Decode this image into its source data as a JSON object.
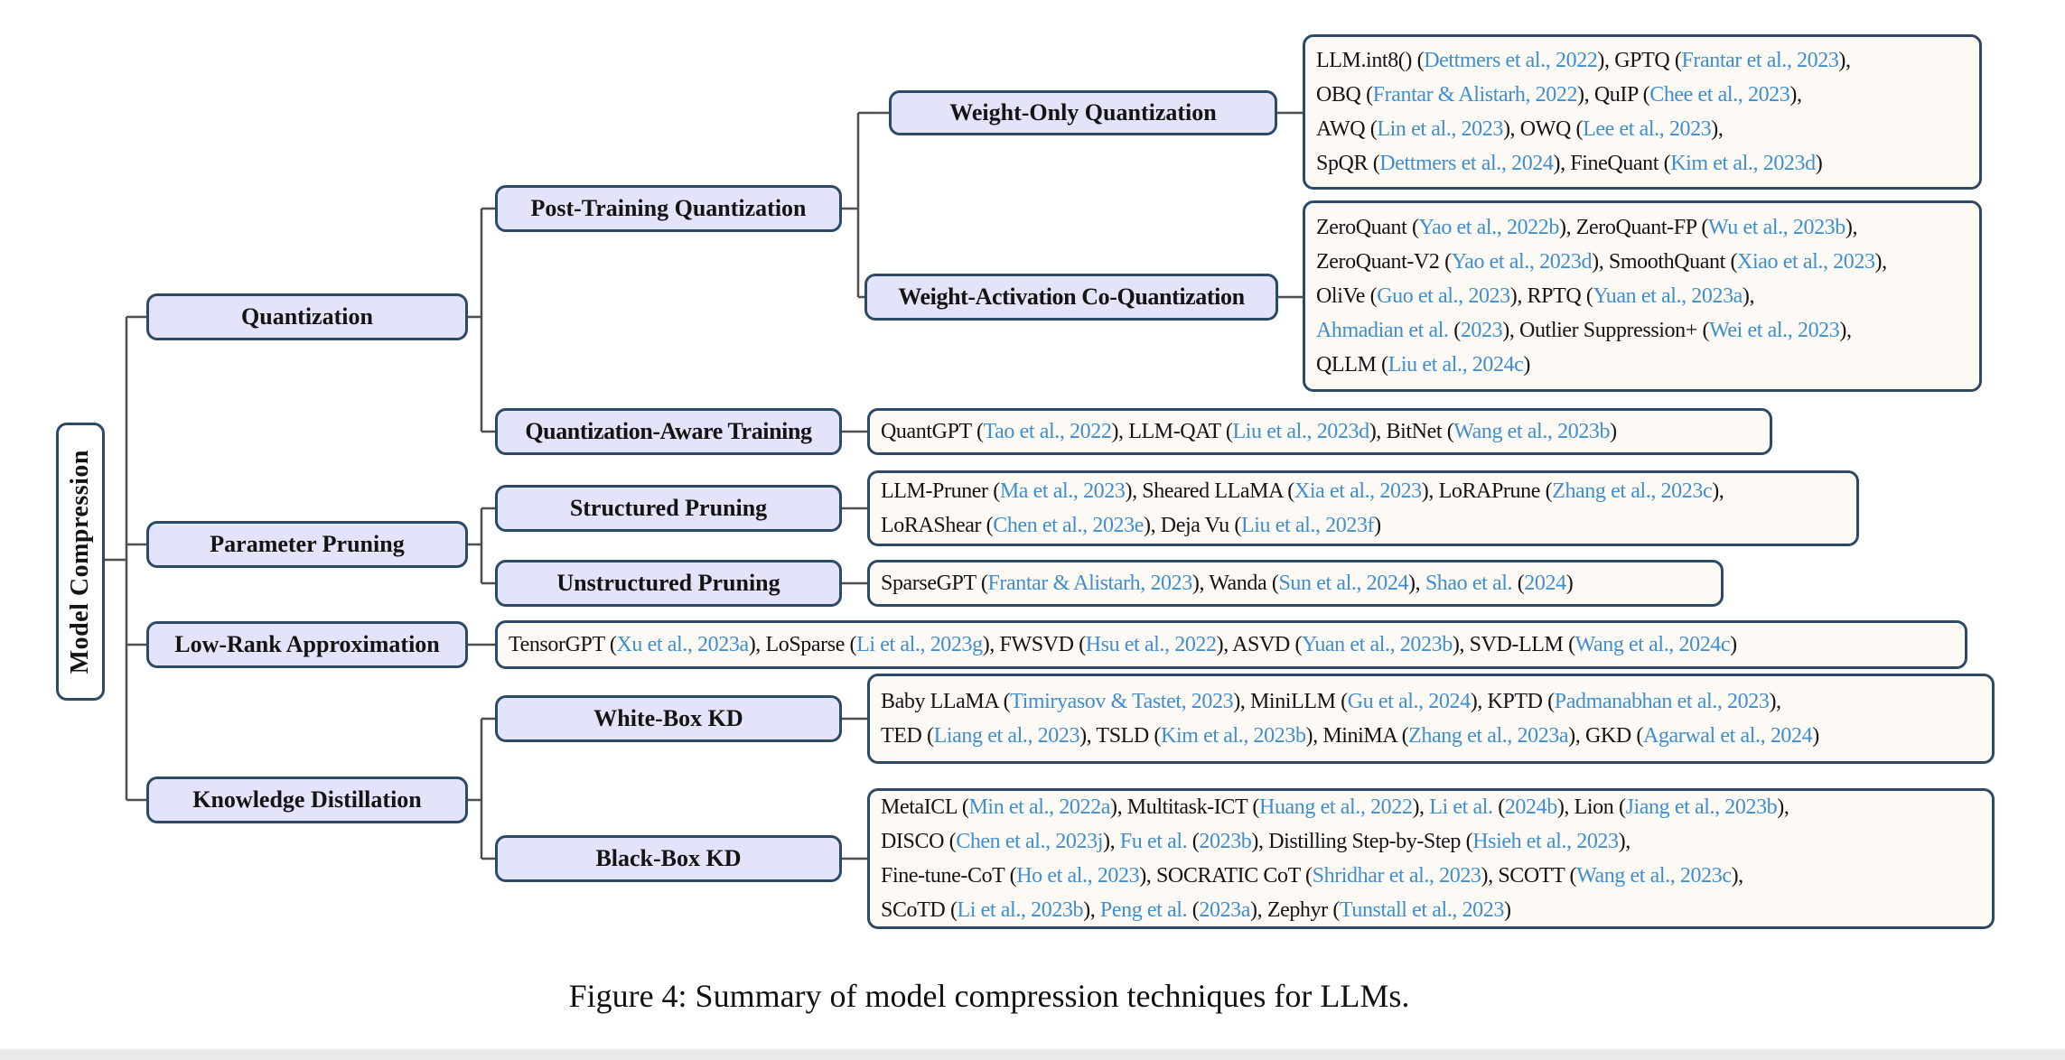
{
  "root": {
    "label": "Model Compression"
  },
  "caption": "Figure 4: Summary of model compression techniques for LLMs.",
  "nodes": {
    "quantization": "Quantization",
    "param_pruning": "Parameter Pruning",
    "low_rank": "Low-Rank Approximation",
    "kd": "Knowledge Distillation",
    "ptq": "Post-Training Quantization",
    "qat": "Quantization-Aware Training",
    "woq": "Weight-Only Quantization",
    "waq": "Weight-Activation Co-Quantization",
    "structured": "Structured Pruning",
    "unstructured": "Unstructured Pruning",
    "whitebox": "White-Box KD",
    "blackbox": "Black-Box KD"
  },
  "colors": {
    "node_fill": "#e3e3f9",
    "node_border": "#2c4965",
    "citation_fill": "#fdf9f5",
    "link_blue": "#3e8ed0",
    "connector_gray": "#4f4f4f"
  },
  "citations": {
    "woq": [
      "LLM.int8() ([[Dettmers et al., 2022]]), GPTQ ([[Frantar et al., 2023]]),",
      "OBQ ([[Frantar & Alistarh, 2022]]), QuIP ([[Chee et al., 2023]]),",
      "AWQ ([[Lin et al., 2023]]), OWQ ([[Lee et al., 2023]]),",
      "SpQR ([[Dettmers et al., 2024]]), FineQuant ([[Kim et al., 2023d]])"
    ],
    "waq": [
      "ZeroQuant ([[Yao et al., 2022b]]), ZeroQuant-FP ([[Wu et al., 2023b]]),",
      "ZeroQuant-V2 ([[Yao et al., 2023d]]), SmoothQuant ([[Xiao et al., 2023]]),",
      "OliVe ([[Guo et al., 2023]]), RPTQ ([[Yuan et al., 2023a]]),",
      "[[Ahmadian et al.]] ([[2023]]), Outlier Suppression+ ([[Wei et al., 2023]]),",
      "QLLM ([[Liu et al., 2024c]])"
    ],
    "qat": [
      "QuantGPT ([[Tao et al., 2022]]), LLM-QAT ([[Liu et al., 2023d]]), BitNet ([[Wang et al., 2023b]])"
    ],
    "structured": [
      "LLM-Pruner ([[Ma et al., 2023]]), Sheared LLaMA ([[Xia et al., 2023]]), LoRAPrune ([[Zhang et al., 2023c]]),",
      "LoRAShear ([[Chen et al., 2023e]]), Deja Vu ([[Liu et al., 2023f]])"
    ],
    "unstructured": [
      "SparseGPT ([[Frantar & Alistarh, 2023]]), Wanda ([[Sun et al., 2024]]), [[Shao et al.]] ([[2024]])"
    ],
    "low_rank": [
      "TensorGPT ([[Xu et al., 2023a]]), LoSparse ([[Li et al., 2023g]]), FWSVD ([[Hsu et al., 2022]]),  ASVD ([[Yuan et al., 2023b]]), SVD-LLM ([[Wang et al., 2024c]])"
    ],
    "whitebox": [
      "Baby LLaMA ([[Timiryasov & Tastet, 2023]]), MiniLLM ([[Gu et al., 2024]]),  KPTD ([[Padmanabhan et al., 2023]]),",
      "TED ([[Liang et al., 2023]]), TSLD ([[Kim et al., 2023b]]), MiniMA ([[Zhang et al., 2023a]]), GKD ([[Agarwal et al., 2024]])"
    ],
    "blackbox": [
      "MetaICL ([[Min et al., 2022a]]), Multitask-ICT ([[Huang et al., 2022]]), [[Li et al.]] ([[2024b]]), Lion ([[Jiang et al., 2023b]]),",
      "DISCO ([[Chen et al., 2023j]]), [[Fu et al.]] ([[2023b]]), Distilling Step-by-Step ([[Hsieh et al., 2023]]),",
      "Fine-tune-CoT ([[Ho et al., 2023]]), SOCRATIC CoT ([[Shridhar et al., 2023]]), SCOTT ([[Wang et al., 2023c]]),",
      "SCoTD ([[Li et al., 2023b]]), [[Peng et al.]] ([[2023a]]), Zephyr ([[Tunstall et al., 2023]])"
    ]
  }
}
